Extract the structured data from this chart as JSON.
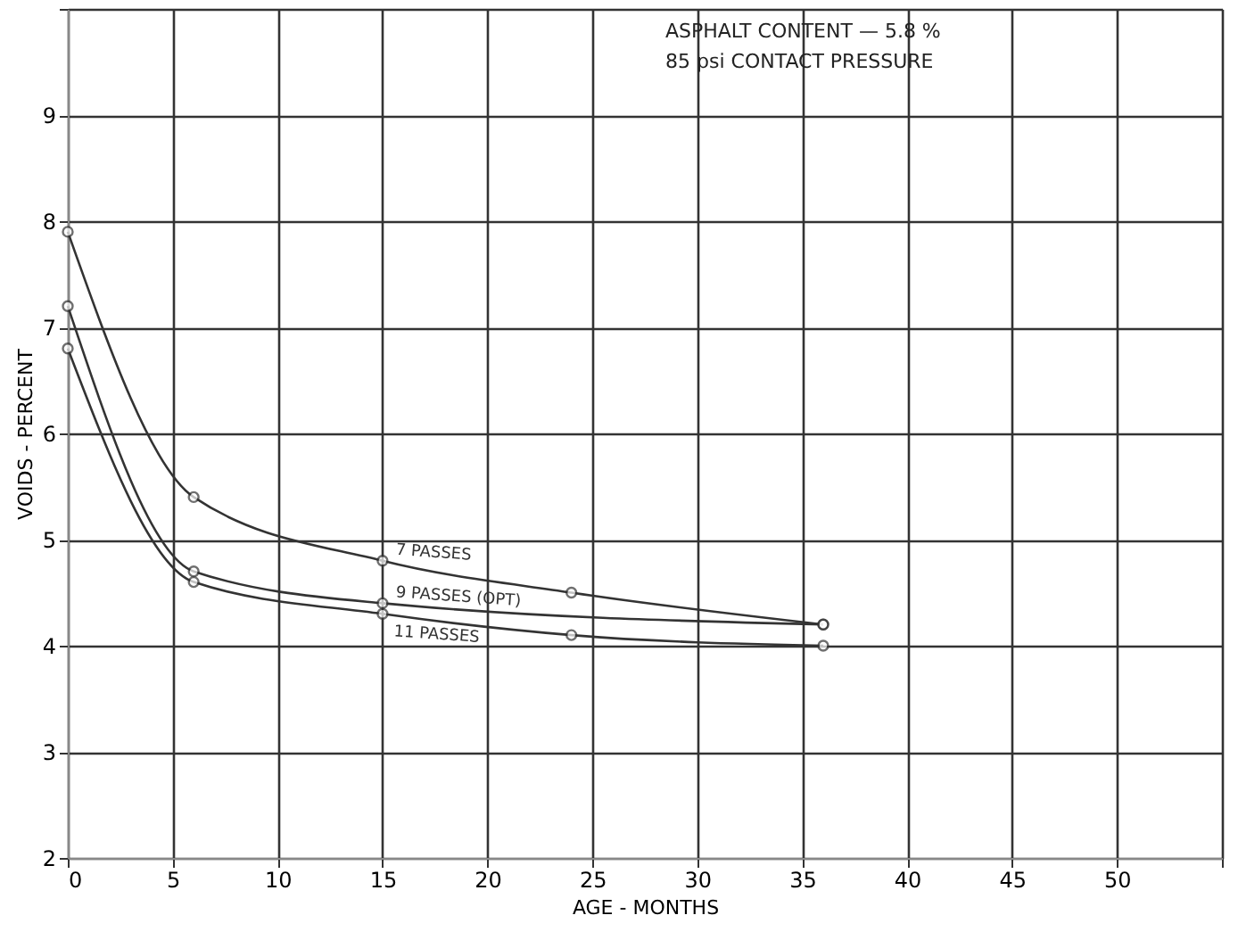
{
  "chart_data": {
    "type": "line",
    "xlabel": "AGE - MONTHS",
    "ylabel": "VOIDS - PERCENT",
    "annotations": [
      "ASPHALT   CONTENT  — 5.8 %",
      "85 psi  CONTACT      PRESSURE"
    ],
    "series": [
      {
        "name": "7 PASSES",
        "color": "#333333",
        "x": [
          0,
          6,
          15,
          24,
          36
        ],
        "values": [
          7.9,
          5.4,
          4.8,
          4.5,
          4.2
        ]
      },
      {
        "name": "9 PASSES (OPT)",
        "color": "#333333",
        "x": [
          0,
          6,
          15,
          36
        ],
        "values": [
          7.2,
          4.7,
          4.4,
          4.2
        ]
      },
      {
        "name": "11 PASSES",
        "color": "#333333",
        "x": [
          0,
          6,
          15,
          24,
          36
        ],
        "values": [
          6.8,
          4.6,
          4.3,
          4.1,
          4.0
        ]
      }
    ],
    "xlim": [
      0,
      55
    ],
    "ylim": [
      2,
      10
    ],
    "xticks": [
      0,
      5,
      10,
      15,
      20,
      25,
      30,
      35,
      40,
      45,
      50,
      {
        "value": 55,
        "label": null
      }
    ],
    "yticks": [
      2,
      3,
      4,
      5,
      6,
      7,
      8,
      9,
      {
        "value": 10,
        "label": null
      }
    ],
    "grid": true,
    "legend": false,
    "marker": "circle",
    "line_style": "solid"
  }
}
